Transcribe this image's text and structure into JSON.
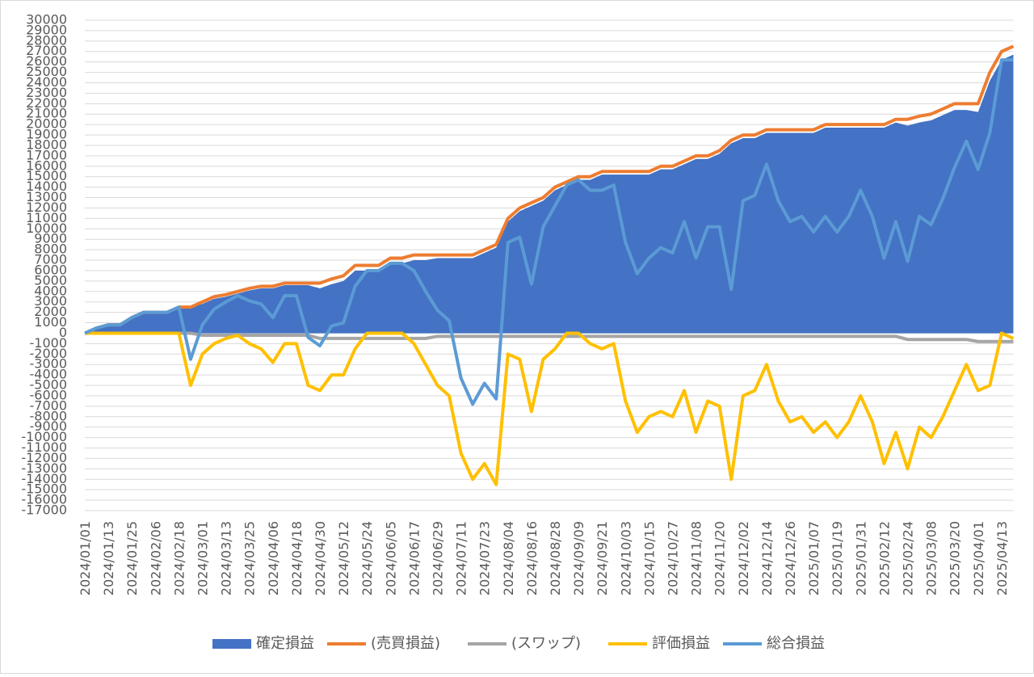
{
  "chart_data": {
    "type": "line",
    "categories": [
      "2024/01/01",
      null,
      "2024/01/13",
      null,
      "2024/01/25",
      null,
      "2024/02/06",
      null,
      "2024/02/18",
      null,
      "2024/03/01",
      null,
      "2024/03/13",
      null,
      "2024/03/25",
      null,
      "2024/04/06",
      null,
      "2024/04/18",
      null,
      "2024/04/30",
      null,
      "2024/05/12",
      null,
      "2024/05/24",
      null,
      "2024/06/05",
      null,
      "2024/06/17",
      null,
      "2024/06/29",
      null,
      "2024/07/11",
      null,
      "2024/07/23",
      null,
      "2024/08/04",
      null,
      "2024/08/16",
      null,
      "2024/08/28",
      null,
      "2024/09/09",
      null,
      "2024/09/21",
      null,
      "2024/10/03",
      null,
      "2024/10/15",
      null,
      "2024/10/27",
      null,
      "2024/11/08",
      null,
      "2024/11/20",
      null,
      "2024/12/02",
      null,
      "2024/12/14",
      null,
      "2024/12/26",
      null,
      "2025/01/07",
      null,
      "2025/01/19",
      null,
      "2025/01/31",
      null,
      "2025/02/12",
      null,
      "2025/02/24",
      null,
      "2025/03/08",
      null,
      "2025/03/20",
      null,
      "2025/04/01",
      null,
      "2025/04/13",
      null
    ],
    "series": [
      {
        "name": "確定損益",
        "kind": "area",
        "color": "#4472c4",
        "values": [
          0,
          500,
          800,
          800,
          1500,
          2000,
          2000,
          2000,
          2500,
          2500,
          2800,
          3300,
          3500,
          3800,
          4100,
          4300,
          4300,
          4600,
          4600,
          4600,
          4300,
          4700,
          5000,
          6000,
          6000,
          6000,
          6700,
          6700,
          7000,
          7000,
          7200,
          7200,
          7200,
          7200,
          7700,
          8200,
          10700,
          11700,
          12200,
          12700,
          13700,
          14200,
          14700,
          14700,
          15200,
          15200,
          15200,
          15200,
          15200,
          15700,
          15700,
          16200,
          16700,
          16700,
          17200,
          18200,
          18700,
          18700,
          19200,
          19200,
          19200,
          19200,
          19200,
          19700,
          19700,
          19700,
          19700,
          19700,
          19700,
          20200,
          19900,
          20200,
          20400,
          20900,
          21400,
          21400,
          21200,
          24200,
          26200,
          26700
        ]
      },
      {
        "name": "(売買損益)",
        "color": "#ed7d31",
        "values": [
          0,
          500,
          800,
          800,
          1500,
          2000,
          2000,
          2000,
          2500,
          2500,
          3000,
          3500,
          3700,
          4000,
          4300,
          4500,
          4500,
          4800,
          4800,
          4800,
          4800,
          5200,
          5500,
          6500,
          6500,
          6500,
          7200,
          7200,
          7500,
          7500,
          7500,
          7500,
          7500,
          7500,
          8000,
          8500,
          11000,
          12000,
          12500,
          13000,
          14000,
          14500,
          15000,
          15000,
          15500,
          15500,
          15500,
          15500,
          15500,
          16000,
          16000,
          16500,
          17000,
          17000,
          17500,
          18500,
          19000,
          19000,
          19500,
          19500,
          19500,
          19500,
          19500,
          20000,
          20000,
          20000,
          20000,
          20000,
          20000,
          20500,
          20500,
          20800,
          21000,
          21500,
          22000,
          22000,
          22000,
          25000,
          27000,
          27500
        ]
      },
      {
        "name": "(スワップ)",
        "color": "#a5a5a5",
        "values": [
          0,
          0,
          0,
          0,
          0,
          0,
          0,
          0,
          0,
          0,
          -200,
          -200,
          -200,
          -200,
          -200,
          -200,
          -200,
          -200,
          -200,
          -200,
          -500,
          -500,
          -500,
          -500,
          -500,
          -500,
          -500,
          -500,
          -500,
          -500,
          -300,
          -300,
          -300,
          -300,
          -300,
          -300,
          -300,
          -300,
          -300,
          -300,
          -300,
          -300,
          -300,
          -300,
          -300,
          -300,
          -300,
          -300,
          -300,
          -300,
          -300,
          -300,
          -300,
          -300,
          -300,
          -300,
          -300,
          -300,
          -300,
          -300,
          -300,
          -300,
          -300,
          -300,
          -300,
          -300,
          -300,
          -300,
          -300,
          -300,
          -600,
          -600,
          -600,
          -600,
          -600,
          -600,
          -800,
          -800,
          -800,
          -800
        ]
      },
      {
        "name": "評価損益",
        "color": "#ffc000",
        "values": [
          0,
          0,
          0,
          0,
          0,
          0,
          0,
          0,
          0,
          -5000,
          -2000,
          -1000,
          -500,
          -200,
          -1000,
          -1500,
          -2800,
          -1000,
          -1000,
          -5000,
          -5500,
          -4000,
          -4000,
          -1500,
          0,
          0,
          0,
          0,
          -1000,
          -3000,
          -5000,
          -6000,
          -11500,
          -14000,
          -12500,
          -14500,
          -2000,
          -2500,
          -7500,
          -2500,
          -1500,
          0,
          0,
          -1000,
          -1500,
          -1000,
          -6500,
          -9500,
          -8000,
          -7500,
          -8000,
          -5500,
          -9500,
          -6500,
          -7000,
          -14000,
          -6000,
          -5500,
          -3000,
          -6500,
          -8500,
          -8000,
          -9500,
          -8500,
          -10000,
          -8500,
          -6000,
          -8500,
          -12500,
          -9500,
          -13000,
          -9000,
          -10000,
          -8000,
          -5500,
          -3000,
          -5500,
          -5000,
          0,
          -500
        ]
      },
      {
        "name": "総合損益",
        "color": "#5b9bd5",
        "values": [
          0,
          500,
          800,
          800,
          1500,
          2000,
          2000,
          2000,
          2500,
          -2500,
          800,
          2300,
          3000,
          3600,
          3100,
          2800,
          1500,
          3600,
          3600,
          -400,
          -1200,
          700,
          1000,
          4500,
          6000,
          6000,
          6700,
          6700,
          6000,
          4000,
          2200,
          1200,
          -4300,
          -6800,
          -4800,
          -6300,
          8700,
          9200,
          4700,
          10200,
          12200,
          14200,
          14700,
          13700,
          13700,
          14200,
          8700,
          5700,
          7200,
          8200,
          7700,
          10700,
          7200,
          10200,
          10200,
          4200,
          12700,
          13200,
          16200,
          12700,
          10700,
          11200,
          9700,
          11200,
          9700,
          11200,
          13700,
          11200,
          7200,
          10700,
          6900,
          11200,
          10400,
          12900,
          15900,
          18400,
          15700,
          19200,
          26200,
          26200
        ]
      }
    ],
    "ylim": [
      -17000,
      30000
    ],
    "yticks": [
      -17000,
      -16000,
      -15000,
      -14000,
      -13000,
      -12000,
      -11000,
      -10000,
      -9000,
      -8000,
      -7000,
      -6000,
      -5000,
      -4000,
      -3000,
      -2000,
      -1000,
      0,
      1000,
      2000,
      3000,
      4000,
      5000,
      6000,
      7000,
      8000,
      9000,
      10000,
      11000,
      12000,
      13000,
      14000,
      15000,
      16000,
      17000,
      18000,
      19000,
      20000,
      21000,
      22000,
      23000,
      24000,
      25000,
      26000,
      27000,
      28000,
      29000,
      30000
    ],
    "grid": true
  }
}
